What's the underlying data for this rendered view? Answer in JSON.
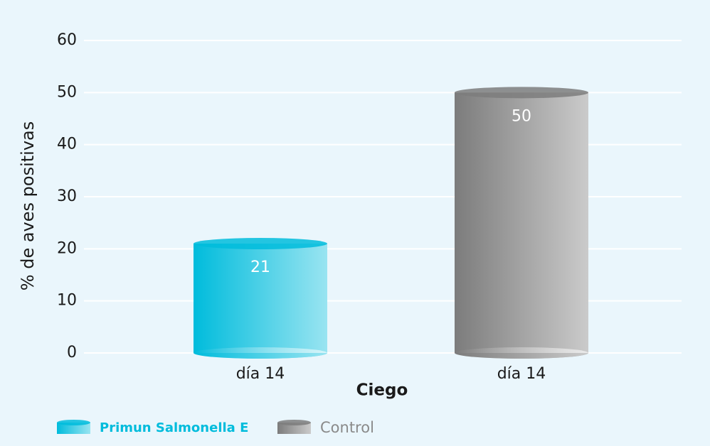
{
  "chart_data": {
    "type": "bar",
    "y_label": "% de aves positivas",
    "x_label": "Ciego",
    "categories": [
      "día 14",
      "día 14"
    ],
    "series": [
      {
        "name": "Primun Salmonella E",
        "color": "#00bcdc",
        "values": [
          21,
          null
        ]
      },
      {
        "name": "Control",
        "color": "#7c7c7c",
        "values": [
          null,
          50
        ]
      }
    ],
    "ylim": [
      0,
      60
    ],
    "yticks": [
      0,
      10,
      20,
      30,
      40,
      50,
      60
    ],
    "grid": true
  }
}
